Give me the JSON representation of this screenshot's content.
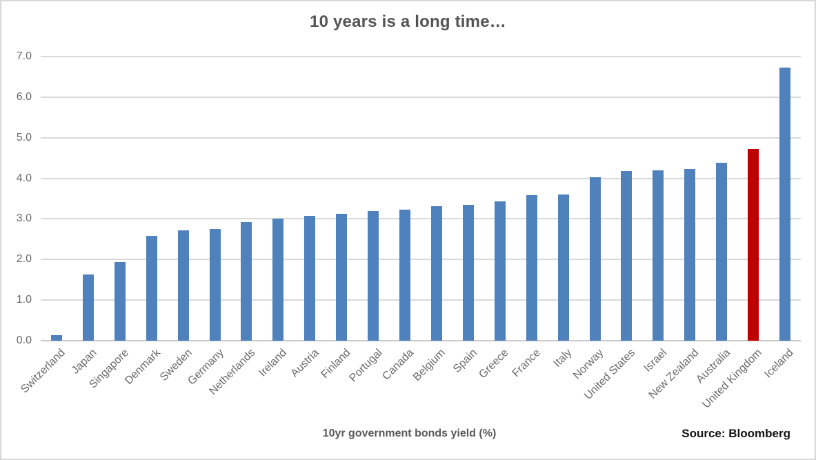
{
  "chart_data": {
    "type": "bar",
    "title": "10 years is a long time…",
    "xlabel": "10yr government bonds yield (%)",
    "ylabel": "",
    "source": "Source: Bloomberg",
    "ylim": [
      0,
      7
    ],
    "ytick_step": 1.0,
    "ytick_labels": [
      "0.0",
      "1.0",
      "2.0",
      "3.0",
      "4.0",
      "5.0",
      "6.0",
      "7.0"
    ],
    "grid": true,
    "legend": false,
    "bar_color": "#4f81bd",
    "highlight_color": "#c00000",
    "highlight_category": "United Kingdom",
    "categories": [
      "Switzerland",
      "Japan",
      "Singapore",
      "Denmark",
      "Sweden",
      "Germany",
      "Netherlands",
      "Ireland",
      "Austria",
      "Finland",
      "Portugal",
      "Canada",
      "Belgium",
      "Spain",
      "Greece",
      "France",
      "Italy",
      "Norway",
      "United States",
      "Israel",
      "New Zealand",
      "Australia",
      "United Kingdom",
      "Iceland"
    ],
    "values": [
      0.13,
      1.63,
      1.93,
      2.59,
      2.71,
      2.76,
      2.93,
      3.01,
      3.08,
      3.13,
      3.19,
      3.23,
      3.32,
      3.35,
      3.44,
      3.58,
      3.6,
      4.02,
      4.18,
      4.2,
      4.23,
      4.38,
      4.73,
      6.73
    ]
  }
}
